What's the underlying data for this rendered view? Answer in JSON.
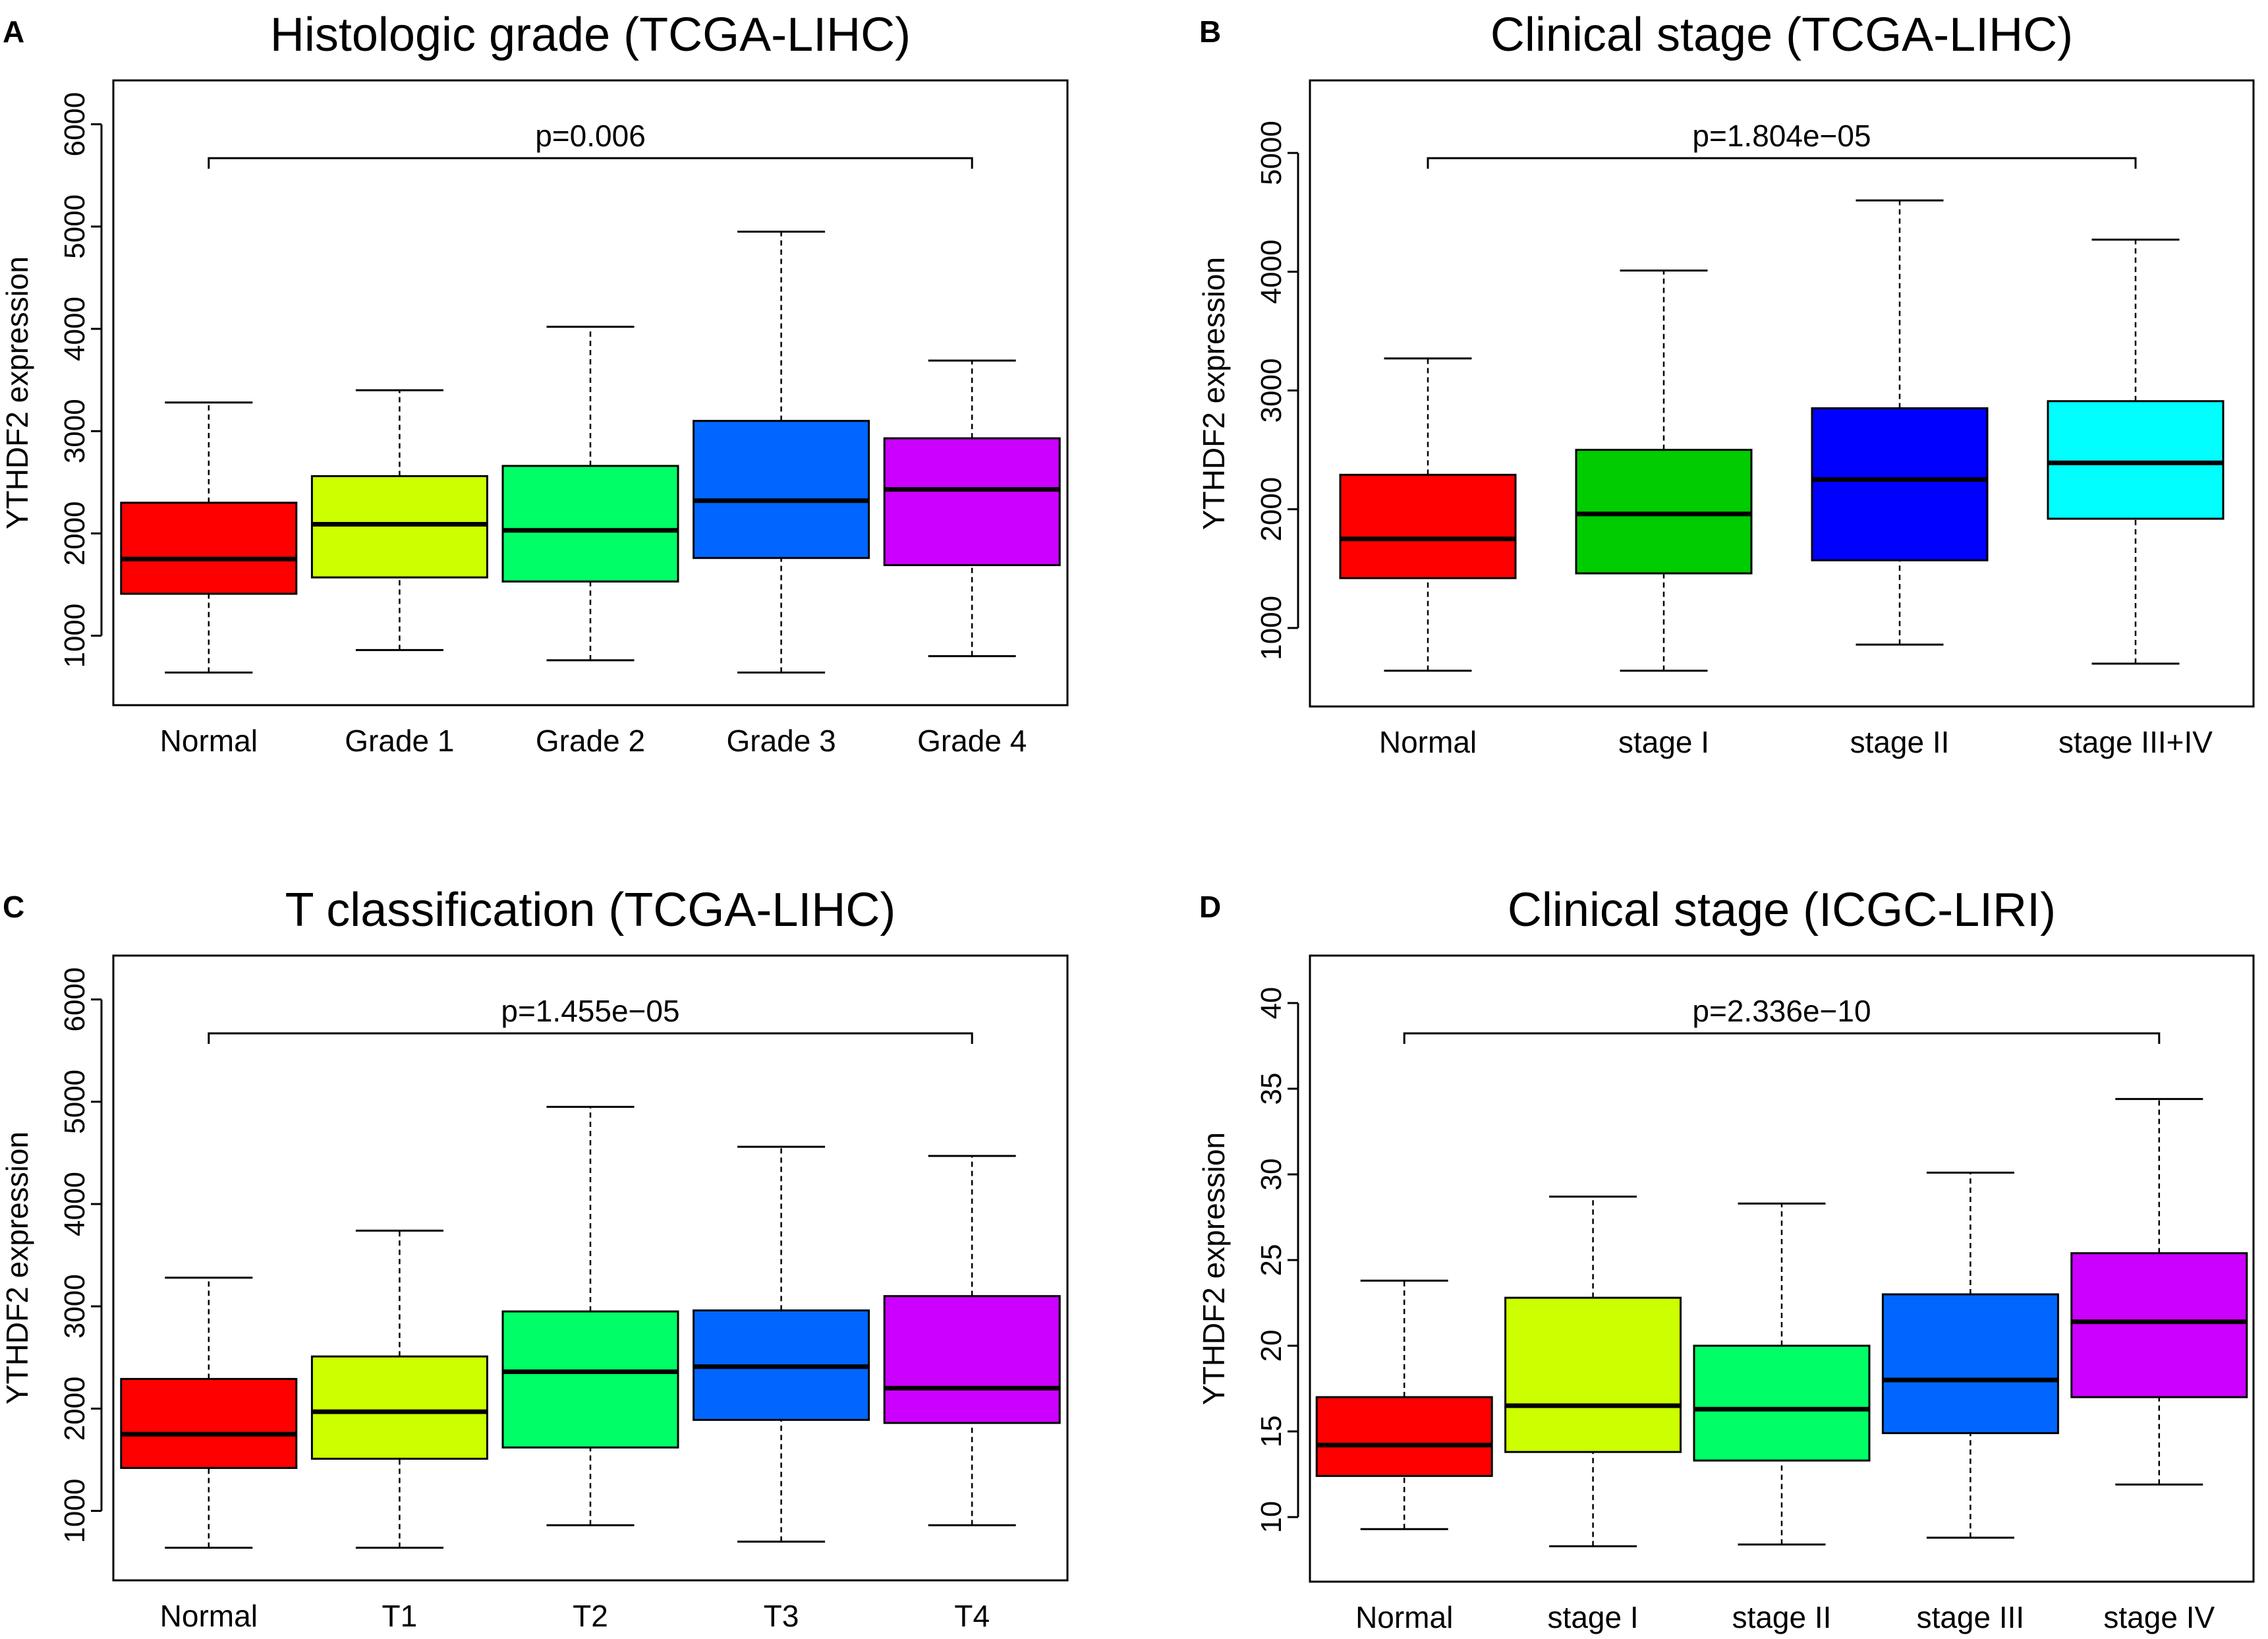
{
  "chart_data": [
    {
      "type": "box",
      "panel": "A",
      "title": "Histologic grade (TCGA-LIHC)",
      "ylabel": "YTHDF2 expression",
      "xlabel": "",
      "ylim": [
        450,
        6300
      ],
      "yticks": [
        1000,
        2000,
        3000,
        4000,
        5000,
        6000
      ],
      "pvalue": "p=0.006",
      "categories": [
        "Normal",
        "Grade 1",
        "Grade 2",
        "Grade 3",
        "Grade 4"
      ],
      "colors": [
        "#FF0000",
        "#CCFF00",
        "#00FF66",
        "#0066FF",
        "#CC00FF"
      ],
      "boxes": [
        {
          "min": 640,
          "q1": 1410,
          "median": 1750,
          "q3": 2300,
          "max": 3280
        },
        {
          "min": 860,
          "q1": 1570,
          "median": 2090,
          "q3": 2560,
          "max": 3400
        },
        {
          "min": 760,
          "q1": 1530,
          "median": 2030,
          "q3": 2660,
          "max": 4020
        },
        {
          "min": 640,
          "q1": 1760,
          "median": 2320,
          "q3": 3100,
          "max": 4950
        },
        {
          "min": 800,
          "q1": 1690,
          "median": 2430,
          "q3": 2930,
          "max": 3690
        }
      ]
    },
    {
      "type": "box",
      "panel": "B",
      "title": "Clinical stage (TCGA-LIHC)",
      "ylabel": "YTHDF2 expression",
      "xlabel": "",
      "ylim": [
        450,
        5500
      ],
      "yticks": [
        1000,
        2000,
        3000,
        4000,
        5000
      ],
      "pvalue": "p=1.804e−05",
      "categories": [
        "Normal",
        "stage I",
        "stage II",
        "stage III+IV"
      ],
      "colors": [
        "#FF0000",
        "#00CC00",
        "#0000FF",
        "#00FFFF"
      ],
      "boxes": [
        {
          "min": 640,
          "q1": 1420,
          "median": 1750,
          "q3": 2290,
          "max": 3270
        },
        {
          "min": 640,
          "q1": 1460,
          "median": 1960,
          "q3": 2500,
          "max": 4010
        },
        {
          "min": 860,
          "q1": 1570,
          "median": 2250,
          "q3": 2850,
          "max": 4600
        },
        {
          "min": 700,
          "q1": 1920,
          "median": 2390,
          "q3": 2910,
          "max": 4270
        }
      ]
    },
    {
      "type": "box",
      "panel": "C",
      "title": "T classification (TCGA-LIHC)",
      "ylabel": "YTHDF2 expression",
      "xlabel": "",
      "ylim": [
        450,
        6300
      ],
      "yticks": [
        1000,
        2000,
        3000,
        4000,
        5000,
        6000
      ],
      "pvalue": "p=1.455e−05",
      "categories": [
        "Normal",
        "T1",
        "T2",
        "T3",
        "T4"
      ],
      "colors": [
        "#FF0000",
        "#CCFF00",
        "#00FF66",
        "#0066FF",
        "#CC00FF"
      ],
      "boxes": [
        {
          "min": 640,
          "q1": 1420,
          "median": 1750,
          "q3": 2290,
          "max": 3280
        },
        {
          "min": 640,
          "q1": 1510,
          "median": 1970,
          "q3": 2510,
          "max": 3740
        },
        {
          "min": 860,
          "q1": 1620,
          "median": 2360,
          "q3": 2950,
          "max": 4950
        },
        {
          "min": 700,
          "q1": 1890,
          "median": 2410,
          "q3": 2960,
          "max": 4560
        },
        {
          "min": 860,
          "q1": 1860,
          "median": 2200,
          "q3": 3100,
          "max": 4470
        }
      ]
    },
    {
      "type": "box",
      "panel": "D",
      "title": "Clinical stage (ICGC-LIRI)",
      "ylabel": "YTHDF2 expression",
      "xlabel": "",
      "ylim": [
        7,
        42
      ],
      "yticks": [
        10,
        15,
        20,
        25,
        30,
        35,
        40
      ],
      "pvalue": "p=2.336e−10",
      "categories": [
        "Normal",
        "stage I",
        "stage II",
        "stage III",
        "stage IV"
      ],
      "colors": [
        "#FF0000",
        "#CCFF00",
        "#00FF66",
        "#0066FF",
        "#CC00FF"
      ],
      "boxes": [
        {
          "min": 9.3,
          "q1": 12.4,
          "median": 14.2,
          "q3": 17.0,
          "max": 23.8
        },
        {
          "min": 8.3,
          "q1": 13.8,
          "median": 16.5,
          "q3": 22.8,
          "max": 28.7
        },
        {
          "min": 8.4,
          "q1": 13.3,
          "median": 16.3,
          "q3": 20.0,
          "max": 28.3
        },
        {
          "min": 8.8,
          "q1": 14.9,
          "median": 18.0,
          "q3": 23.0,
          "max": 30.1
        },
        {
          "min": 11.9,
          "q1": 17.0,
          "median": 21.4,
          "q3": 25.4,
          "max": 34.4
        }
      ]
    }
  ]
}
